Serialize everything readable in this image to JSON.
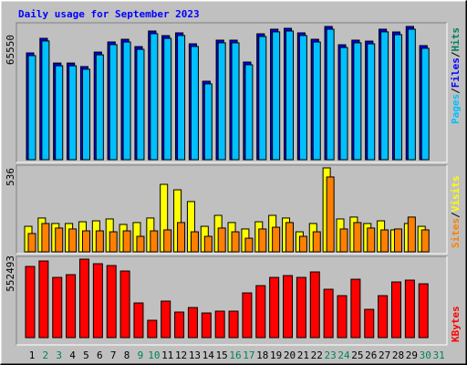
{
  "chart_data": [
    {
      "type": "bar",
      "title": "Daily usage for September 2023",
      "title_color": "#0000ff",
      "ylim": [
        0,
        65550
      ],
      "yticks": [
        65550
      ],
      "legend_separator": "/",
      "series": [
        {
          "name": "Hits",
          "color": "#00805c",
          "values": [
            52500,
            59700,
            47500,
            47500,
            45800,
            52900,
            57900,
            59200,
            55600,
            63300,
            61000,
            62400,
            57000,
            38600,
            58800,
            58800,
            48000,
            61900,
            64200,
            64600,
            62400,
            59200,
            65550,
            56500,
            58800,
            58300,
            64200,
            62800,
            65550,
            56100,
            null
          ]
        },
        {
          "name": "Files",
          "color": "#0000ff",
          "values": [
            52500,
            59700,
            47500,
            47500,
            45800,
            52900,
            57900,
            59200,
            55600,
            63300,
            61000,
            62400,
            57000,
            38600,
            58800,
            58800,
            48000,
            61900,
            64200,
            64600,
            62400,
            59200,
            65550,
            56500,
            58800,
            58300,
            64200,
            62800,
            65550,
            56100,
            null
          ]
        },
        {
          "name": "Pages",
          "color": "#00c0ff",
          "values": [
            51200,
            58400,
            46200,
            46200,
            44500,
            51600,
            56600,
            57900,
            54300,
            62000,
            59700,
            61100,
            55700,
            37300,
            57500,
            57500,
            46700,
            60600,
            62900,
            63300,
            61100,
            57900,
            64200,
            55200,
            57500,
            57000,
            62900,
            61500,
            64200,
            54800,
            null
          ]
        }
      ]
    },
    {
      "type": "bar",
      "ylim": [
        0,
        536
      ],
      "yticks": [
        536
      ],
      "legend_separator": "/",
      "series": [
        {
          "name": "Visits",
          "color": "#ffff00",
          "values": [
            163,
            216,
            181,
            181,
            192,
            198,
            210,
            175,
            187,
            216,
            431,
            396,
            321,
            163,
            233,
            187,
            146,
            192,
            233,
            216,
            128,
            181,
            536,
            210,
            222,
            181,
            198,
            140,
            181,
            163,
            null
          ]
        },
        {
          "name": "Sites",
          "color": "#ff8000",
          "values": [
            117,
            181,
            152,
            146,
            134,
            134,
            128,
            134,
            99,
            134,
            140,
            187,
            128,
            99,
            152,
            128,
            87,
            146,
            157,
            187,
            99,
            128,
            478,
            146,
            187,
            152,
            140,
            146,
            222,
            140,
            null
          ]
        }
      ]
    },
    {
      "type": "bar",
      "ylim": [
        0,
        552493
      ],
      "yticks": [
        552493
      ],
      "categories": [
        "1",
        "2",
        "3",
        "4",
        "5",
        "6",
        "7",
        "8",
        "9",
        "10",
        "11",
        "12",
        "13",
        "14",
        "15",
        "16",
        "17",
        "18",
        "19",
        "20",
        "21",
        "22",
        "23",
        "24",
        "25",
        "26",
        "27",
        "28",
        "29",
        "30",
        "31"
      ],
      "category_colors": [
        "#000000",
        "#00805c",
        "#00805c",
        "#000000",
        "#000000",
        "#000000",
        "#000000",
        "#000000",
        "#00805c",
        "#00805c",
        "#000000",
        "#000000",
        "#000000",
        "#000000",
        "#000000",
        "#00805c",
        "#00805c",
        "#000000",
        "#000000",
        "#000000",
        "#000000",
        "#000000",
        "#00805c",
        "#00805c",
        "#000000",
        "#000000",
        "#000000",
        "#000000",
        "#000000",
        "#00805c",
        "#00805c"
      ],
      "series": [
        {
          "name": "KBytes",
          "color": "#ff0000",
          "values": [
            501100,
            539600,
            424000,
            443300,
            552493,
            520300,
            507500,
            469000,
            244100,
            122100,
            257000,
            179900,
            212000,
            173400,
            186300,
            186300,
            314800,
            366200,
            424000,
            436800,
            424000,
            462500,
            340500,
            295500,
            411100,
            199100,
            295500,
            391900,
            404700,
            379000,
            null
          ]
        }
      ]
    }
  ]
}
